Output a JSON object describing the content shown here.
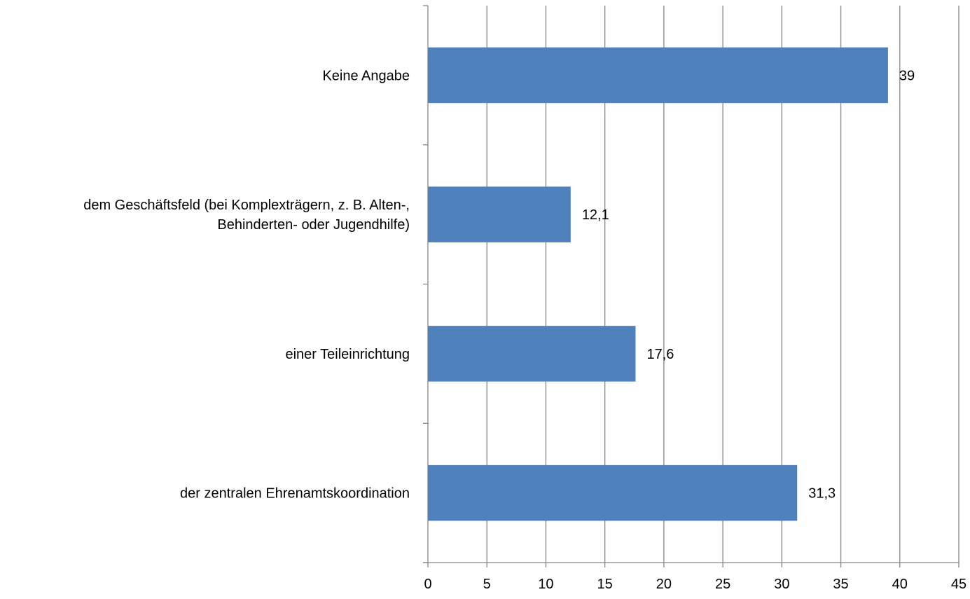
{
  "chart_data": {
    "type": "bar",
    "orientation": "horizontal",
    "categories": [
      "Keine Angabe",
      "dem Geschäftsfeld (bei Komplexträgern,  z. B. Alten-,\nBehinderten- oder Jugendhilfe)",
      "einer Teileinrichtung",
      "der zentralen Ehrenamtskoordination"
    ],
    "values": [
      39,
      12.1,
      17.6,
      31.3
    ],
    "value_labels": [
      "39",
      "12,1",
      "17,6",
      "31,3"
    ],
    "xlim": [
      0,
      45
    ],
    "xticks": [
      0,
      5,
      10,
      15,
      20,
      25,
      30,
      35,
      40,
      45
    ],
    "grid": true,
    "legend": "none",
    "bar_color": "#4F81BD",
    "grid_color": "#868686"
  }
}
